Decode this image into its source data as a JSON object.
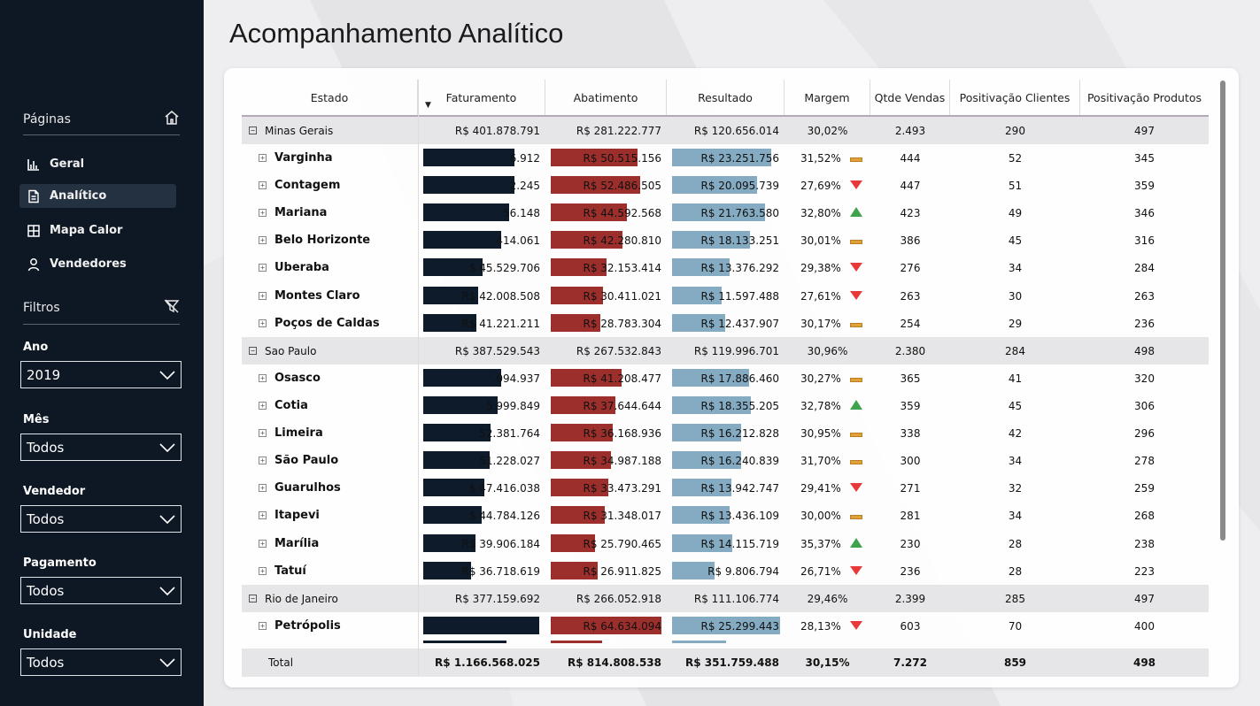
{
  "sidebar": {
    "pages_title": "Páginas",
    "nav": [
      {
        "label": "Geral",
        "icon": "bar-chart-icon",
        "active": false
      },
      {
        "label": "Analítico",
        "icon": "document-icon",
        "active": true
      },
      {
        "label": "Mapa Calor",
        "icon": "grid-icon",
        "active": false
      },
      {
        "label": "Vendedores",
        "icon": "person-icon",
        "active": false
      }
    ],
    "filters_title": "Filtros",
    "filters": [
      {
        "label": "Ano",
        "value": "2019"
      },
      {
        "label": "Mês",
        "value": "Todos"
      },
      {
        "label": "Vendedor",
        "value": "Todos"
      },
      {
        "label": "Pagamento",
        "value": "Todos"
      },
      {
        "label": "Unidade",
        "value": "Todos"
      }
    ]
  },
  "page_title": "Acompanhamento Analítico",
  "table": {
    "columns": [
      "Estado",
      "Faturamento",
      "Abatimento",
      "Resultado",
      "Margem",
      "Qtde Vendas",
      "Positivação Clientes",
      "Positivação Produtos"
    ],
    "sorted_column": "Faturamento",
    "sort_direction": "descending",
    "rows": [
      {
        "type": "group",
        "name": "Minas Gerais",
        "fat": "R$ 401.878.791",
        "aba": "R$ 281.222.777",
        "res": "R$ 120.656.014",
        "margem": "30,02%",
        "qtde": "2.493",
        "pcli": "290",
        "pprod": "497"
      },
      {
        "type": "item",
        "name": "Varginha",
        "fat": "6.912",
        "aba": "R$ 50.515.156",
        "res": "R$ 23.251.756",
        "margem": "31,52%",
        "ind": "eq",
        "qtde": "444",
        "pcli": "52",
        "pprod": "345",
        "fat_pct": 0.79,
        "aba_pct": 0.78,
        "res_pct": 0.92
      },
      {
        "type": "item",
        "name": "Contagem",
        "fat": "2.245",
        "aba": "R$ 52.486.505",
        "res": "R$ 20.095.739",
        "margem": "27,69%",
        "ind": "dn",
        "qtde": "447",
        "pcli": "51",
        "pprod": "359",
        "fat_pct": 0.79,
        "aba_pct": 0.81,
        "res_pct": 0.79
      },
      {
        "type": "item",
        "name": "Mariana",
        "fat": "56.148",
        "aba": "R$ 44.592.568",
        "res": "R$ 21.763.580",
        "margem": "32,80%",
        "ind": "up",
        "qtde": "423",
        "pcli": "49",
        "pprod": "346",
        "fat_pct": 0.74,
        "aba_pct": 0.69,
        "res_pct": 0.86
      },
      {
        "type": "item",
        "name": "Belo Horizonte",
        "fat": ".414.061",
        "aba": "R$ 42.280.810",
        "res": "R$ 18.133.251",
        "margem": "30,01%",
        "ind": "eq",
        "qtde": "386",
        "pcli": "45",
        "pprod": "316",
        "fat_pct": 0.67,
        "aba_pct": 0.65,
        "res_pct": 0.72
      },
      {
        "type": "item",
        "name": "Uberaba",
        "fat": "$ 45.529.706",
        "aba": "R$ 32.153.414",
        "res": "R$ 13.376.292",
        "margem": "29,38%",
        "ind": "dn",
        "qtde": "276",
        "pcli": "34",
        "pprod": "284",
        "fat_pct": 0.51,
        "aba_pct": 0.5,
        "res_pct": 0.53
      },
      {
        "type": "item",
        "name": "Montes Claro",
        "fat": "R$ 42.008.508",
        "aba": "R$ 30.411.021",
        "res": "R$ 11.597.488",
        "margem": "27,61%",
        "ind": "dn",
        "qtde": "263",
        "pcli": "30",
        "pprod": "263",
        "fat_pct": 0.47,
        "aba_pct": 0.47,
        "res_pct": 0.46
      },
      {
        "type": "item",
        "name": "Poços de Caldas",
        "fat": "R$ 41.221.211",
        "aba": "R$ 28.783.304",
        "res": "R$ 12.437.907",
        "margem": "30,17%",
        "ind": "eq",
        "qtde": "254",
        "pcli": "29",
        "pprod": "236",
        "fat_pct": 0.46,
        "aba_pct": 0.45,
        "res_pct": 0.49
      },
      {
        "type": "group",
        "name": "Sao Paulo",
        "fat": "R$ 387.529.543",
        "aba": "R$ 267.532.843",
        "res": "R$ 119.996.701",
        "margem": "30,96%",
        "qtde": "2.380",
        "pcli": "284",
        "pprod": "498"
      },
      {
        "type": "item",
        "name": "Osasco",
        "fat": ".094.937",
        "aba": "R$ 41.208.477",
        "res": "R$ 17.886.460",
        "margem": "30,27%",
        "ind": "eq",
        "qtde": "365",
        "pcli": "41",
        "pprod": "320",
        "fat_pct": 0.67,
        "aba_pct": 0.64,
        "res_pct": 0.71
      },
      {
        "type": "item",
        "name": "Cotia",
        "fat": "5.999.849",
        "aba": "R$ 37.644.644",
        "res": "R$ 18.355.205",
        "margem": "32,78%",
        "ind": "up",
        "qtde": "359",
        "pcli": "45",
        "pprod": "306",
        "fat_pct": 0.64,
        "aba_pct": 0.58,
        "res_pct": 0.73
      },
      {
        "type": "item",
        "name": "Limeira",
        "fat": "52.381.764",
        "aba": "R$ 36.168.936",
        "res": "R$ 16.212.828",
        "margem": "30,95%",
        "ind": "eq",
        "qtde": "338",
        "pcli": "42",
        "pprod": "296",
        "fat_pct": 0.58,
        "aba_pct": 0.56,
        "res_pct": 0.64
      },
      {
        "type": "item",
        "name": "São Paulo",
        "fat": "51.228.027",
        "aba": "R$ 34.987.188",
        "res": "R$ 16.240.839",
        "margem": "31,70%",
        "ind": "eq",
        "qtde": "300",
        "pcli": "34",
        "pprod": "278",
        "fat_pct": 0.57,
        "aba_pct": 0.54,
        "res_pct": 0.64
      },
      {
        "type": "item",
        "name": "Guarulhos",
        "fat": "$ 47.416.038",
        "aba": "R$ 33.473.291",
        "res": "R$ 13.942.747",
        "margem": "29,41%",
        "ind": "dn",
        "qtde": "271",
        "pcli": "32",
        "pprod": "259",
        "fat_pct": 0.53,
        "aba_pct": 0.52,
        "res_pct": 0.55
      },
      {
        "type": "item",
        "name": "Itapevi",
        "fat": "$ 44.784.126",
        "aba": "R$ 31.348.017",
        "res": "R$ 13.436.109",
        "margem": "30,00%",
        "ind": "eq",
        "qtde": "281",
        "pcli": "34",
        "pprod": "268",
        "fat_pct": 0.5,
        "aba_pct": 0.49,
        "res_pct": 0.53
      },
      {
        "type": "item",
        "name": "Marília",
        "fat": "R$ 39.906.184",
        "aba": "R$ 25.790.465",
        "res": "R$ 14.115.719",
        "margem": "35,37%",
        "ind": "up",
        "qtde": "230",
        "pcli": "28",
        "pprod": "238",
        "fat_pct": 0.45,
        "aba_pct": 0.4,
        "res_pct": 0.56
      },
      {
        "type": "item",
        "name": "Tatuí",
        "fat": "R$ 36.718.619",
        "aba": "R$ 26.911.825",
        "res": "R$ 9.806.794",
        "margem": "26,71%",
        "ind": "dn",
        "qtde": "236",
        "pcli": "28",
        "pprod": "223",
        "fat_pct": 0.41,
        "aba_pct": 0.42,
        "res_pct": 0.39
      },
      {
        "type": "group",
        "name": "Rio de Janeiro",
        "fat": "R$ 377.159.692",
        "aba": "R$ 266.052.918",
        "res": "R$ 111.106.774",
        "margem": "29,46%",
        "qtde": "2.399",
        "pcli": "285",
        "pprod": "497"
      },
      {
        "type": "item",
        "name": "Petrópolis",
        "fat": "",
        "aba": "R$ 64.634.094",
        "res": "R$ 25.299.443",
        "margem": "28,13%",
        "ind": "dn",
        "qtde": "603",
        "pcli": "70",
        "pprod": "400",
        "fat_pct": 1.0,
        "aba_pct": 1.0,
        "res_pct": 1.0
      }
    ],
    "total": {
      "name": "Total",
      "fat": "R$ 1.166.568.025",
      "aba": "R$ 814.808.538",
      "res": "R$ 351.759.488",
      "margem": "30,15%",
      "qtde": "7.272",
      "pcli": "859",
      "pprod": "498"
    }
  },
  "colors": {
    "faturamento": "#0d1b2a",
    "abatimento": "#9c2f2b",
    "resultado": "#84abc2",
    "sidebar": "#0e1824"
  }
}
